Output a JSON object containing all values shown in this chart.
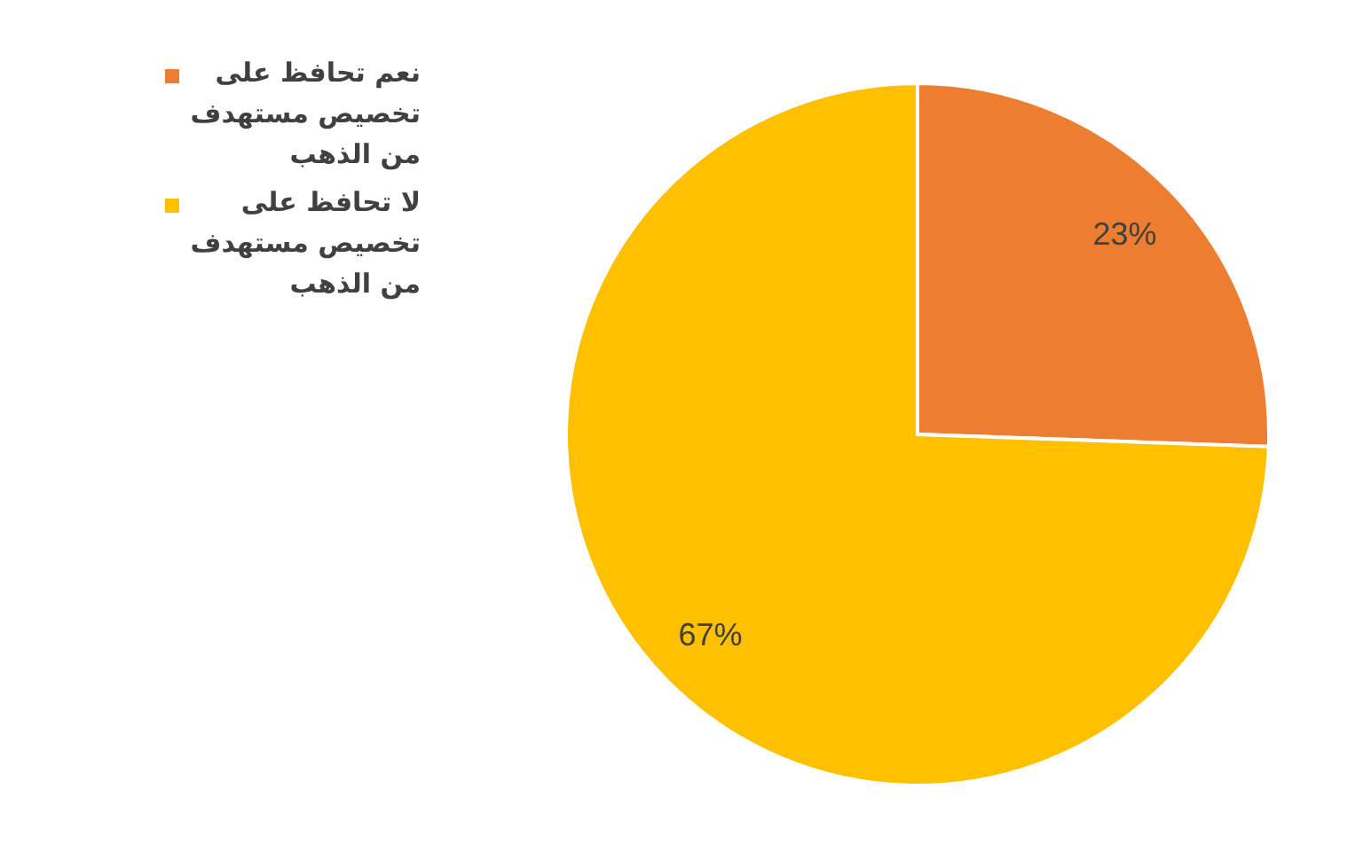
{
  "chart_data": {
    "type": "pie",
    "categories": [
      "نعم تحافظ على تخصيص مستهدف من الذهب",
      "لا تحافظ على تخصيص مستهدف من الذهب"
    ],
    "values": [
      23,
      67
    ],
    "colors": [
      "#ed7d31",
      "#ffc000"
    ],
    "value_labels": [
      "23%",
      "67%"
    ],
    "legend": "top left"
  }
}
